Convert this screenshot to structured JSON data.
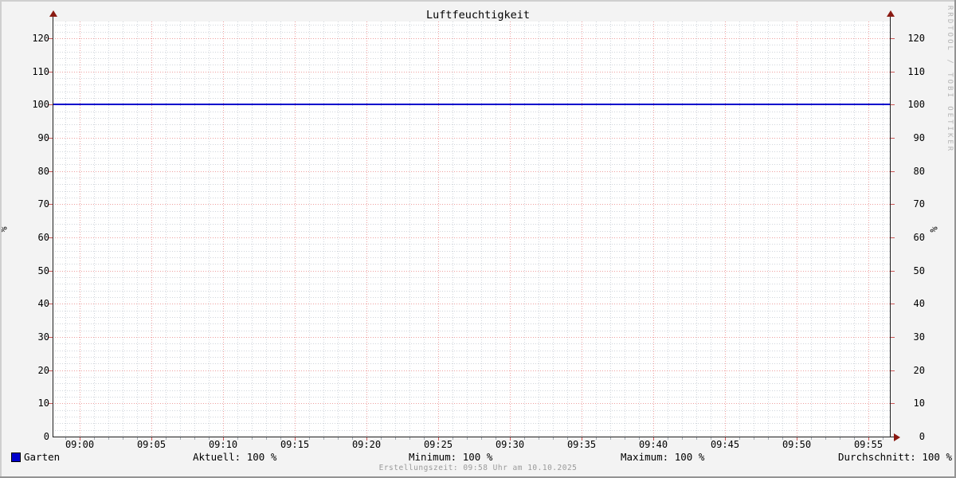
{
  "chart": {
    "title": "Luftfeuchtigkeit",
    "watermark": "RRDTOOL / TOBI OETIKER",
    "footer": "Erstellungszeit: 09:58 Uhr am 10.10.2025",
    "y_axis_unit": "%",
    "legend": {
      "series_label": "Garten",
      "stats": [
        "Aktuell: 100 %",
        "Minimum: 100 %",
        "Maximum: 100 %",
        "Durchschnitt: 100 %"
      ]
    },
    "colors": {
      "background": "#f3f3f3",
      "canvas": "#ffffff",
      "series": "#0000cc",
      "major_grid": "rgba(224,80,80,0.55)",
      "major_tick": "rgba(200,70,70,0.9)",
      "minor_grid": "rgba(150,162,176,0.45)",
      "minor_tick": "rgba(140,150,160,0.8)",
      "axis": "#1f1f1f",
      "arrow": "#8a1a12"
    }
  },
  "chart_data": {
    "type": "line",
    "title": "Luftfeuchtigkeit",
    "xlabel": "",
    "ylabel": "%",
    "ylim": [
      0,
      125
    ],
    "y_ticks": [
      0,
      10,
      20,
      30,
      40,
      50,
      60,
      70,
      80,
      90,
      100,
      110,
      120
    ],
    "y_minor_step": 2,
    "x_ticks": [
      "09:00",
      "09:05",
      "09:10",
      "09:15",
      "09:20",
      "09:25",
      "09:30",
      "09:35",
      "09:40",
      "09:45",
      "09:50",
      "09:55"
    ],
    "x_range": [
      "08:58",
      "09:58"
    ],
    "x_minor_step_minutes": 1,
    "grid": true,
    "legend_position": "bottom",
    "series": [
      {
        "name": "Garten",
        "color": "#0000cc",
        "x": [
          "08:58",
          "09:58"
        ],
        "values": [
          100,
          100
        ]
      }
    ],
    "stats": {
      "aktuell": "100 %",
      "minimum": "100 %",
      "maximum": "100 %",
      "durchschnitt": "100 %"
    }
  }
}
